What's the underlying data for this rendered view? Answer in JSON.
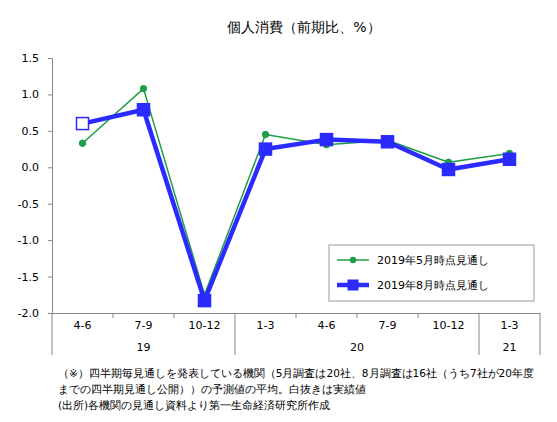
{
  "chart_data": {
    "type": "line",
    "title": "個人消費（前期比、%）",
    "categories": [
      "4-6",
      "7-9",
      "10-12",
      "1-3",
      "4-6",
      "7-9",
      "10-12",
      "1-3"
    ],
    "category_years": [
      "19",
      "19",
      "19",
      "20",
      "20",
      "20",
      "20",
      "21"
    ],
    "series": [
      {
        "name": "2019年5月時点見通し",
        "color": "#1e9e46",
        "marker": "circle",
        "line_style": "solid",
        "values": [
          0.33,
          1.08,
          -1.75,
          0.45,
          0.31,
          0.37,
          0.07,
          0.19
        ]
      },
      {
        "name": "2019年8月時点見通し",
        "color": "#2b2bff",
        "marker": "square",
        "line_style": "solid",
        "colors": [
          "#ffffff",
          "#2b2bff",
          "#2b2bff",
          "#2b2bff",
          "#2b2bff",
          "#2b2bff",
          "#2b2bff",
          "#2b2bff"
        ],
        "values": [
          0.6,
          0.79,
          -1.83,
          0.25,
          0.38,
          0.35,
          -0.03,
          0.11
        ]
      }
    ],
    "ylim": [
      -2.0,
      1.5
    ],
    "yticks": [
      1.5,
      {
        "value": 1.0,
        "label": "1.0"
      },
      0.5,
      {
        "value": 0.0,
        "label": "0.0"
      },
      -0.5,
      {
        "value": -1.0,
        "label": "-1.0"
      },
      -1.5,
      {
        "value": -2.0,
        "label": "-2.0"
      }
    ],
    "grid": false,
    "legend": "lower right",
    "notes": [
      "（※）四半期毎見通しを発表している機関（5月調査は20社、8月調査は16社（うち7社が20年度",
      "までの四半期見通し公開））の予測値の平均。白抜きは実績値",
      "(出所)各機関の見通し資料より第一生命経済研究所作成"
    ]
  }
}
